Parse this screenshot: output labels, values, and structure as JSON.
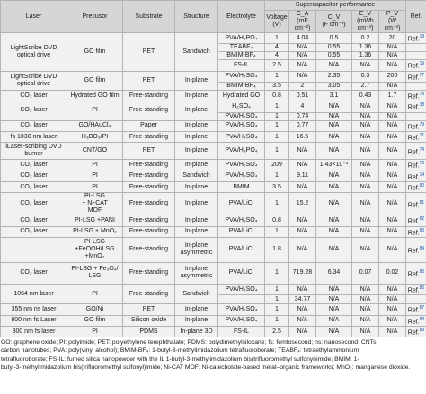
{
  "headers": {
    "laser": "Laser",
    "precursor": "Precusor",
    "substrate": "Substrate",
    "structure": "Structure",
    "electrolyte": "Electrolyte",
    "perf_group": "Supercapacitor performance",
    "voltage": "Voltage\n(V)",
    "ca": "C_A\n(mF cm⁻²)",
    "cv": "C_V\n(F cm⁻³)",
    "ev": "E_V\n(mWh cm⁻³)",
    "pv": "P_V\n(W cm⁻³)",
    "ref": "Ref."
  },
  "groups": [
    {
      "laser": "LightScribe DVD\noptical drive",
      "precursor": "GO film",
      "substrate": "PET",
      "structure": "Sandwich",
      "rows": [
        {
          "electrolyte": "PVA/H₂PO₄",
          "voltage": "1",
          "ca": "4.04",
          "cv": "0.5",
          "ev": "0.2",
          "pv": "20",
          "ref": "Ref.",
          "sup": "18"
        },
        {
          "electrolyte": "TEABF₄",
          "voltage": "4",
          "ca": "N/A",
          "cv": "0.55",
          "ev": "1.36",
          "pv": "N/A",
          "ref": "",
          "sup": ""
        },
        {
          "electrolyte": "BMIM-BF₄",
          "voltage": "4",
          "ca": "N/A",
          "cv": "0.55",
          "ev": "1.36",
          "pv": "N/A",
          "ref": "",
          "sup": ""
        },
        {
          "electrolyte": "FS-IL",
          "voltage": "2.5",
          "ca": "N/A",
          "cv": "N/A",
          "ev": "N/A",
          "pv": "N/A",
          "ref": "Ref.",
          "sup": "19"
        }
      ]
    },
    {
      "laser": "LightScribe DVD\noptical drive",
      "precursor": "GO film",
      "substrate": "PET",
      "structure": "In-plane",
      "rows": [
        {
          "electrolyte": "PVA/H₂SO₄",
          "voltage": "1",
          "ca": "N/A",
          "cv": "2.35",
          "ev": "0.3",
          "pv": "200",
          "ref": "Ref.",
          "sup": "77"
        },
        {
          "electrolyte": "BMIM-BF₄",
          "voltage": "3.5",
          "ca": "2",
          "cv": "3.05",
          "ev": "2.7",
          "pv": "N/A",
          "ref": "",
          "sup": ""
        }
      ]
    },
    {
      "laser": "CO₂ laser",
      "precursor": "Hydrated GO film",
      "substrate": "Free-standing",
      "structure": "In-plane",
      "rows": [
        {
          "electrolyte": "Hydrated GO",
          "voltage": "0.8",
          "ca": "0.51",
          "cv": "3.1",
          "ev": "0.43",
          "pv": "1.7",
          "ref": "Ref.",
          "sup": "78"
        }
      ]
    },
    {
      "laser": "CO₂ laser",
      "precursor": "PI",
      "substrate": "Free-standing",
      "structure": "In-plane",
      "rows": [
        {
          "electrolyte": "H₂SO₄",
          "voltage": "1",
          "ca": "4",
          "cv": "N/A",
          "ev": "N/A",
          "pv": "N/A",
          "ref": "Ref.",
          "sup": "38"
        },
        {
          "electrolyte": "PVA/H₂SO₄",
          "voltage": "1",
          "ca": "0.74",
          "cv": "N/A",
          "ev": "N/A",
          "pv": "N/A",
          "ref": "",
          "sup": ""
        }
      ]
    },
    {
      "laser": "CO₂ laser",
      "precursor": "GO/HAuCl₄",
      "substrate": "Paper",
      "structure": "In-plane",
      "rows": [
        {
          "electrolyte": "PVA/H₂SO₄",
          "voltage": "1",
          "ca": "0.77",
          "cv": "N/A",
          "ev": "N/A",
          "pv": "N/A",
          "ref": "Ref.",
          "sup": "79"
        }
      ]
    },
    {
      "laser": "fs 1030 nm laser",
      "precursor": "H₃BO₃/PI",
      "substrate": "Free-standing",
      "structure": "In-plane",
      "rows": [
        {
          "electrolyte": "PVA/H₂SO₄",
          "voltage": "1",
          "ca": "16.5",
          "cv": "N/A",
          "ev": "N/A",
          "pv": "N/A",
          "ref": "Ref.",
          "sup": "71"
        }
      ]
    },
    {
      "laser": "lLaser-scribing DVD\nburner",
      "precursor": "CNT/GO",
      "substrate": "PET",
      "structure": "In-plane",
      "rows": [
        {
          "electrolyte": "PVA/H₃PO₄",
          "voltage": "1",
          "ca": "N/A",
          "cv": "N/A",
          "ev": "N/A",
          "pv": "N/A",
          "ref": "Ref.",
          "sup": "74"
        }
      ]
    },
    {
      "laser": "CO₂ laser",
      "precursor": "PI",
      "substrate": "Free-standing",
      "structure": "In-plane",
      "rows": [
        {
          "electrolyte": "PVA/H₂SO₄",
          "voltage": "209",
          "ca": "N/A",
          "cv": "1.43×10⁻³",
          "ev": "N/A",
          "pv": "N/A",
          "ref": "Ref.",
          "sup": "76"
        }
      ]
    },
    {
      "laser": "CO₂ laser",
      "precursor": "PI",
      "substrate": "Free-standing",
      "structure": "Sandwich",
      "rows": [
        {
          "electrolyte": "PVA/H₂SO₄",
          "voltage": "1",
          "ca": "9.11",
          "cv": "N/A",
          "ev": "N/A",
          "pv": "N/A",
          "ref": "Ref.",
          "sup": "14"
        }
      ]
    },
    {
      "laser": "CO₂ laser",
      "precursor": "PI",
      "substrate": "Free-standing",
      "structure": "In-plane",
      "rows": [
        {
          "electrolyte": "BMIM",
          "voltage": "3.5",
          "ca": "N/A",
          "cv": "N/A",
          "ev": "N/A",
          "pv": "N/A",
          "ref": "Ref.",
          "sup": "80"
        }
      ]
    },
    {
      "laser": "CO₂ laser",
      "precursor": "PI-LSG\n+ Ni-CAT\nMOF",
      "substrate": "Free-standing",
      "structure": "In-plane",
      "rows": [
        {
          "electrolyte": "PVA/LiCl",
          "voltage": "1",
          "ca": "15.2",
          "cv": "N/A",
          "ev": "N/A",
          "pv": "N/A",
          "ref": "Ref.",
          "sup": "81"
        }
      ]
    },
    {
      "laser": "CO₂ laser",
      "precursor": "PI-LSG +PANI",
      "substrate": "Free-standing",
      "structure": "In-plane",
      "rows": [
        {
          "electrolyte": "PVA/H₂SO₄",
          "voltage": "0.8",
          "ca": "N/A",
          "cv": "N/A",
          "ev": "N/A",
          "pv": "N/A",
          "ref": "Ref.",
          "sup": "82"
        }
      ]
    },
    {
      "laser": "CO₂ laser",
      "precursor": "PI-LSG + MnO₂",
      "substrate": "Free-standing",
      "structure": "In-plane",
      "rows": [
        {
          "electrolyte": "PVA/LiCl",
          "voltage": "1",
          "ca": "N/A",
          "cv": "N/A",
          "ev": "N/A",
          "pv": "N/A",
          "ref": "Ref.",
          "sup": "83"
        }
      ]
    },
    {
      "laser": "",
      "precursor": "PI-LSG\n+FeOOH/LSG\n+MnO₂",
      "substrate": "Free-standing",
      "structure": "In-plane\nasymmetric",
      "rows": [
        {
          "electrolyte": "PVA/LiCl",
          "voltage": "1.8",
          "ca": "N/A",
          "cv": "N/A",
          "ev": "N/A",
          "pv": "N/A",
          "ref": "Ref.",
          "sup": "84"
        }
      ]
    },
    {
      "laser": "CO₂ laser",
      "precursor": "PI-LSG + Fe₃O₄/\nLSG",
      "substrate": "Free-standing",
      "structure": "In-plane\nasymmetric",
      "rows": [
        {
          "electrolyte": "PVA/LiCl",
          "voltage": "1",
          "ca": "719.28",
          "cv": "6.34",
          "ev": "0.07",
          "pv": "0.02",
          "ref": "Ref.",
          "sup": "85"
        }
      ]
    },
    {
      "laser": "1064 nm laser",
      "precursor": "PI",
      "substrate": "Free-standing",
      "structure": "Sandwich",
      "rows": [
        {
          "electrolyte": "PVA/H₂SO₄",
          "voltage": "1",
          "ca": "N/A",
          "cv": "N/A",
          "ev": "N/A",
          "pv": "N/A",
          "ref": "Ref.",
          "sup": "86"
        },
        {
          "electrolyte": "",
          "voltage": "1",
          "ca": "34.77",
          "cv": "N/A",
          "ev": "N/A",
          "pv": "N/A",
          "ref": "",
          "sup": ""
        }
      ]
    },
    {
      "laser": "355 nm ns laser",
      "precursor": "GO/Ni",
      "substrate": "PET",
      "structure": "In-plane",
      "rows": [
        {
          "electrolyte": "PVA/H₂SO₄",
          "voltage": "1",
          "ca": "N/A",
          "cv": "N/A",
          "ev": "N/A",
          "pv": "N/A",
          "ref": "Ref.",
          "sup": "87"
        }
      ]
    },
    {
      "laser": "800 nm fs Laser",
      "precursor": "GO film",
      "substrate": "Silicon oxide",
      "structure": "In-plane",
      "rows": [
        {
          "electrolyte": "PVA/H₂SO₄",
          "voltage": "1",
          "ca": "N/A",
          "cv": "N/A",
          "ev": "N/A",
          "pv": "N/A",
          "ref": "Ref.",
          "sup": "88"
        }
      ]
    },
    {
      "laser": "800 nm fs laser",
      "precursor": "PI",
      "substrate": "PDMS",
      "structure": "In-plane 3D",
      "rows": [
        {
          "electrolyte": "FS-IL",
          "voltage": "2.5",
          "ca": "N/A",
          "cv": "N/A",
          "ev": "N/A",
          "pv": "N/A",
          "ref": "Ref.",
          "sup": "89"
        }
      ]
    }
  ],
  "notes": [
    "GO: graphene oxide; PI: polyimide; PET: polyethylene terephthalate; PDMS: polydimethylsiloxane; fs: femtosecond; ns: nanosecond; CNTs:",
    "carbon nanotubes; PVA: poly(vinyl alcohol); BMIM-BF₄: 1-butyl-3-methylimidazolium tetrafluoroborate; TEABF₄: tetraethylammonium",
    "tetrafluoroborate; FS-IL: fumed silica nanopowder with the IL 1-butyl-3-methylimidazolium bis(trifluoromethyl sulfonyl)imide; BMIM: 1-",
    "butyl-3-methylimidazolium bis(trifluoromethyl sulfonyl)imide; Ni-CAT MOF: Ni-catecholate-based metal–organic frameworks; MnO₂: manganese dioxide."
  ]
}
